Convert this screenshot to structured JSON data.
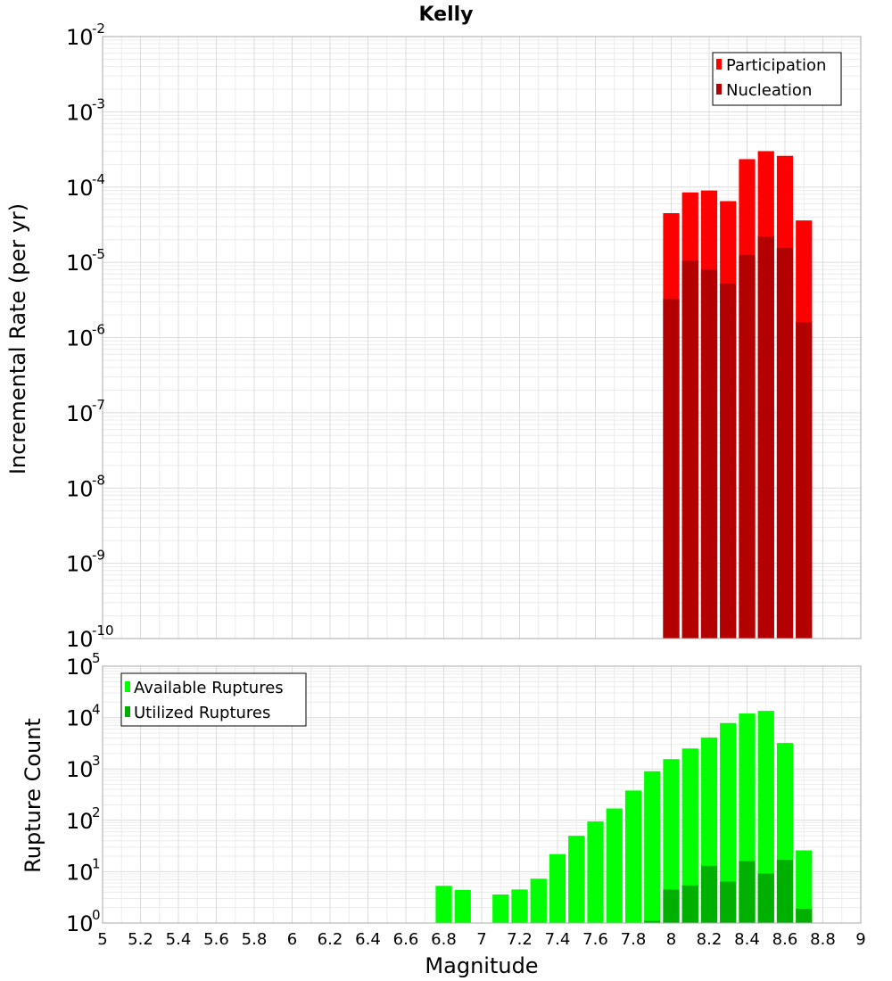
{
  "chart_data": [
    {
      "type": "bar",
      "title": "Kelly",
      "xlabel": "Magnitude",
      "ylabel": "Incremental Rate (per yr)",
      "yscale": "log",
      "xlim": [
        5,
        9
      ],
      "ylim_exp": [
        -10,
        -2
      ],
      "x": [
        8.0,
        8.1,
        8.2,
        8.3,
        8.4,
        8.5,
        8.6,
        8.7
      ],
      "legend_position": "top-right",
      "series": [
        {
          "name": "Participation",
          "color": "#ff0000",
          "values": [
            4.5e-05,
            8.5e-05,
            9e-05,
            6.5e-05,
            0.000235,
            0.0003,
            0.00026,
            3.6e-05
          ]
        },
        {
          "name": "Nucleation",
          "color": "#b30000",
          "values": [
            3.3e-06,
            1.05e-05,
            8e-06,
            5.2e-06,
            1.25e-05,
            2.2e-05,
            1.55e-05,
            1.6e-06
          ]
        }
      ]
    },
    {
      "type": "bar",
      "xlabel": "Magnitude",
      "ylabel": "Rupture Count",
      "yscale": "log",
      "xlim": [
        5,
        9
      ],
      "ylim_exp": [
        0,
        5
      ],
      "x": [
        6.8,
        6.9,
        7.1,
        7.2,
        7.3,
        7.4,
        7.5,
        7.6,
        7.7,
        7.8,
        7.9,
        8.0,
        8.1,
        8.2,
        8.3,
        8.4,
        8.5,
        8.6,
        8.7
      ],
      "legend_position": "top-left",
      "series": [
        {
          "name": "Available Ruptures",
          "color": "#00ff00",
          "values": [
            5.3,
            4.4,
            3.6,
            4.5,
            7.3,
            22,
            50,
            95,
            170,
            380,
            900,
            1550,
            2500,
            4100,
            7800,
            12000,
            13500,
            3200,
            26
          ]
        },
        {
          "name": "Utilized Ruptures",
          "color": "#00b000",
          "values": [
            0,
            0,
            0,
            0,
            0,
            0,
            0,
            0,
            0,
            0,
            1.1,
            4.5,
            5.4,
            13,
            6.4,
            16,
            9.2,
            17,
            1.9
          ]
        }
      ]
    }
  ],
  "x_tick_labels": [
    "5",
    "5.2",
    "5.4",
    "5.6",
    "5.8",
    "6",
    "6.2",
    "6.4",
    "6.6",
    "6.8",
    "7",
    "7.2",
    "7.4",
    "7.6",
    "7.8",
    "8",
    "8.2",
    "8.4",
    "8.6",
    "8.8",
    "9"
  ]
}
